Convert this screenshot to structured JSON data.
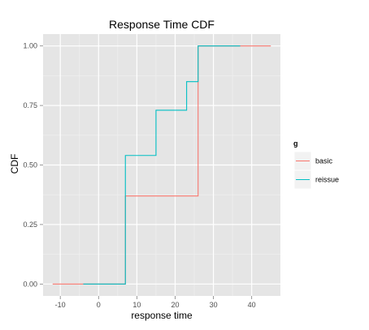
{
  "chart_data": {
    "type": "line",
    "step": true,
    "title": "Response Time CDF",
    "xlabel": "response time",
    "ylabel": "CDF",
    "xlim": [
      -14.5,
      47.5
    ],
    "ylim": [
      -0.05,
      1.05
    ],
    "x_ticks": [
      -10,
      0,
      10,
      20,
      30,
      40
    ],
    "x_tick_labels": [
      "-10",
      "0",
      "10",
      "20",
      "30",
      "40"
    ],
    "y_ticks": [
      0,
      0.25,
      0.5,
      0.75,
      1
    ],
    "y_tick_labels": [
      "0.00",
      "0.25",
      "0.50",
      "0.75",
      "1.00"
    ],
    "grid": true,
    "background": "#e5e5e5",
    "legend": {
      "title": "g",
      "position": "right"
    },
    "series": [
      {
        "name": "basic",
        "color": "#f8766d",
        "x": [
          -12,
          7,
          26,
          45
        ],
        "y": [
          0,
          0.37,
          1,
          1
        ]
      },
      {
        "name": "reissue",
        "color": "#00bfc4",
        "x": [
          -4,
          7,
          15,
          23,
          26,
          37
        ],
        "y": [
          0,
          0.54,
          0.73,
          0.85,
          1,
          1
        ]
      }
    ]
  }
}
